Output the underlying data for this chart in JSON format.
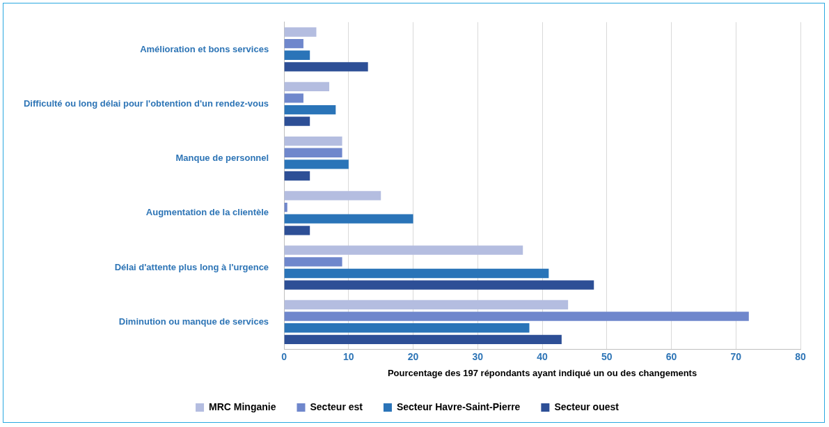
{
  "chart_data": {
    "type": "bar",
    "orientation": "horizontal",
    "xlabel": "Pourcentage des 197 répondants ayant indiqué un ou des changements",
    "categories": [
      "Amélioration et bons services",
      "Difficulté ou long délai pour l'obtention d'un rendez-vous",
      "Manque de personnel",
      "Augmentation de la clientèle",
      "Délai d'attente plus long à l'urgence",
      "Diminution ou manque de services"
    ],
    "series": [
      {
        "name": "MRC Minganie",
        "color": "#b4bde0",
        "values": [
          5,
          7,
          9,
          15,
          37,
          44
        ]
      },
      {
        "name": "Secteur est",
        "color": "#6f87cc",
        "values": [
          3,
          3,
          9,
          0.5,
          9,
          72
        ]
      },
      {
        "name": "Secteur Havre-Saint-Pierre",
        "color": "#2a74b8",
        "values": [
          4,
          8,
          10,
          20,
          41,
          38
        ]
      },
      {
        "name": "Secteur ouest",
        "color": "#2d4f96",
        "values": [
          13,
          4,
          4,
          4,
          48,
          43
        ]
      }
    ],
    "xlim": [
      0,
      80
    ],
    "xticks": [
      0,
      10,
      20,
      30,
      40,
      50,
      60,
      70,
      80
    ],
    "grid": "x",
    "legend": "bottom"
  }
}
